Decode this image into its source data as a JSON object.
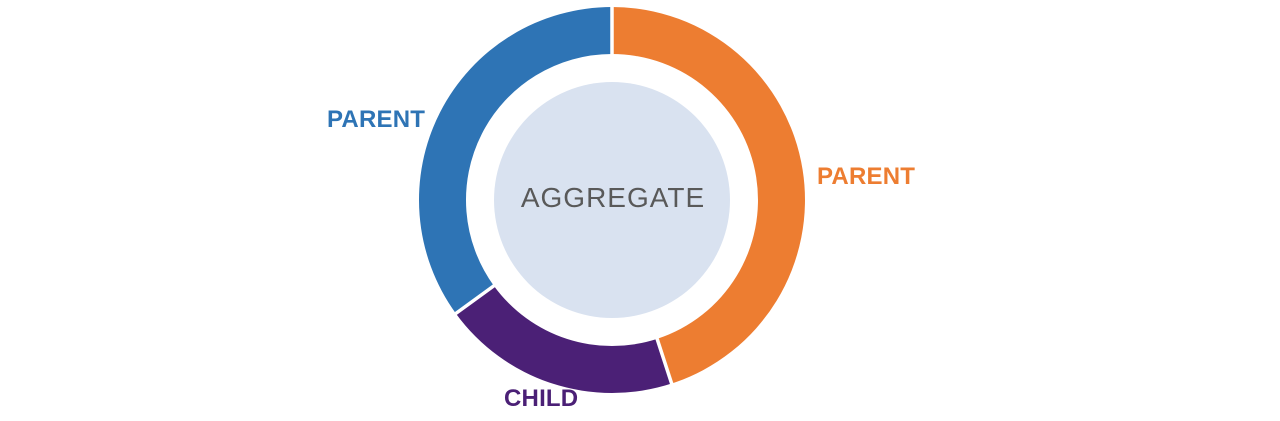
{
  "chart_data": {
    "type": "pie",
    "variant": "donut",
    "direction": "clockwise",
    "start_angle_deg": 0,
    "legend": "none",
    "center_label": "AGGREGATE",
    "center_label_color": "#595959",
    "center_fill": "#D9E2F0",
    "separator_color": "#FFFFFF",
    "background": "#FFFFFF",
    "slices": [
      {
        "label": "PARENT",
        "value": 45,
        "color": "#ED7D31",
        "label_side": "right"
      },
      {
        "label": "CHILD",
        "value": 20,
        "color": "#4B2076",
        "label_side": "bottom"
      },
      {
        "label": "PARENT",
        "value": 35,
        "color": "#2E74B5",
        "label_side": "left"
      }
    ]
  }
}
